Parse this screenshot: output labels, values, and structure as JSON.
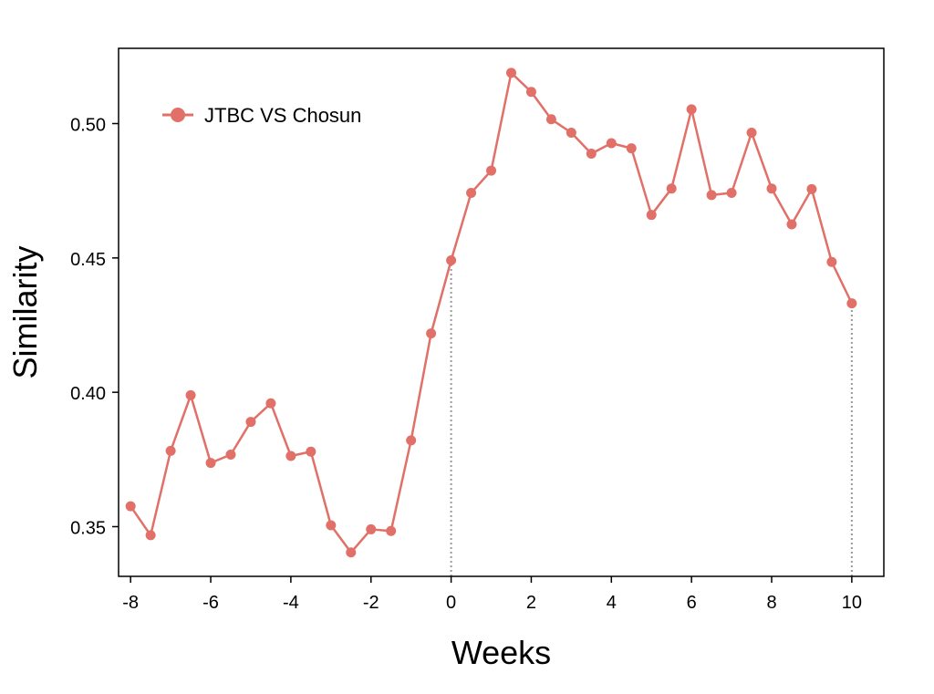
{
  "chart_data": {
    "type": "line",
    "xlabel": "Weeks",
    "ylabel": "Similarity",
    "xlim": [
      -8.3,
      10.8
    ],
    "ylim": [
      0.3315,
      0.528
    ],
    "xticks": [
      -8,
      -6,
      -4,
      -2,
      0,
      2,
      4,
      6,
      8,
      10
    ],
    "yticks": [
      0.35,
      0.4,
      0.45,
      0.5
    ],
    "ytick_labels": [
      "0.35",
      "0.40",
      "0.45",
      "0.50"
    ],
    "grid": false,
    "legend_position": "top-left",
    "reference_lines": [
      {
        "x": 0,
        "style": "dotted",
        "color": "#999999"
      },
      {
        "x": 10,
        "style": "dotted",
        "color": "#999999"
      }
    ],
    "series": [
      {
        "name": "JTBC VS Chosun",
        "color": "#e07068",
        "x": [
          -8,
          -7.5,
          -7,
          -6.5,
          -6,
          -5.5,
          -5,
          -4.5,
          -4,
          -3.5,
          -3,
          -2.5,
          -2,
          -1.5,
          -1,
          -0.5,
          0,
          0.5,
          1,
          1.5,
          2,
          2.5,
          3,
          3.5,
          4,
          4.5,
          5,
          5.5,
          6,
          6.5,
          7,
          7.5,
          8,
          8.5,
          9,
          9.5,
          10
        ],
        "values": [
          0.3576,
          0.3468,
          0.3782,
          0.3989,
          0.3737,
          0.3768,
          0.389,
          0.3959,
          0.3763,
          0.3779,
          0.3505,
          0.3404,
          0.349,
          0.3484,
          0.3821,
          0.4219,
          0.4491,
          0.4742,
          0.4825,
          0.5189,
          0.5118,
          0.5016,
          0.4966,
          0.4888,
          0.4927,
          0.4908,
          0.466,
          0.4758,
          0.5053,
          0.4734,
          0.4742,
          0.4966,
          0.4758,
          0.4625,
          0.4756,
          0.4485,
          0.4331
        ]
      }
    ]
  }
}
